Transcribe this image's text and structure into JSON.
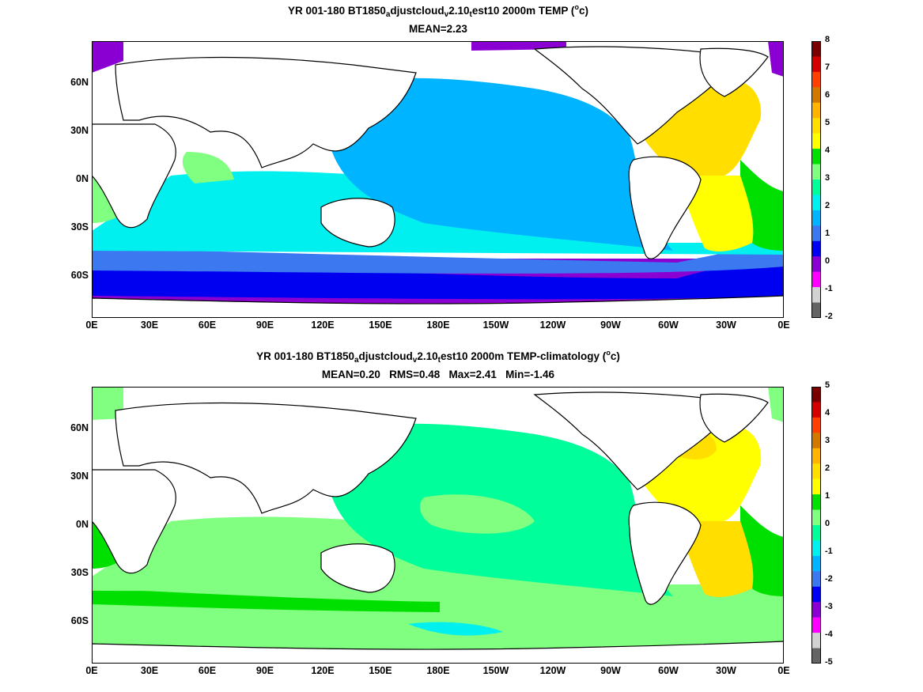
{
  "panels": [
    {
      "id": "top",
      "title": {
        "part1": "YR 001-180 BT1850",
        "sub1": "a",
        "part2": "djustcloud",
        "sub2": "v",
        "part3": "2.10",
        "sub3": "t",
        "part4": "est10 2000m TEMP (",
        "sup": "o",
        "part5": "c)"
      },
      "subtitle": "MEAN=2.23",
      "colorbar": {
        "ticks": [
          "8",
          "7",
          "6",
          "5",
          "4",
          "3",
          "2",
          "1",
          "0",
          "-1",
          "-2"
        ],
        "colors_top_to_bottom": [
          "#7a0000",
          "#d40000",
          "#ff4000",
          "#d27800",
          "#ffb400",
          "#ffde00",
          "#ffff00",
          "#00e000",
          "#80ff80",
          "#00ff9a",
          "#00f0f0",
          "#00b4ff",
          "#3c78f0",
          "#0000f0",
          "#8a00d2",
          "#ff00ff",
          "#d2d2d2",
          "#646464"
        ]
      },
      "regions": [
        {
          "name": "pacific",
          "color": "#00b4ff"
        },
        {
          "name": "atlantic-north",
          "color": "#ffde00"
        },
        {
          "name": "atlantic-south",
          "color": "#ffff00"
        },
        {
          "name": "indian-south",
          "color": "#00f0f0"
        },
        {
          "name": "southern-ocean",
          "color": "#3c78f0"
        },
        {
          "name": "antarctic",
          "color": "#8a00d2"
        }
      ]
    },
    {
      "id": "bottom",
      "title": {
        "part1": "YR 001-180 BT1850",
        "sub1": "a",
        "part2": "djustcloud",
        "sub2": "v",
        "part3": "2.10",
        "sub3": "t",
        "part4": "est10 2000m TEMP-climatology (",
        "sup": "o",
        "part5": "c)"
      },
      "subtitle": "MEAN=0.20   RMS=0.48   Max=2.41   Min=-1.46",
      "colorbar": {
        "ticks": [
          "5",
          "4",
          "3",
          "2",
          "1",
          "0",
          "-1",
          "-2",
          "-3",
          "-4",
          "-5"
        ],
        "colors_top_to_bottom": [
          "#7a0000",
          "#d40000",
          "#ff4000",
          "#d27800",
          "#ffb400",
          "#ffde00",
          "#ffff00",
          "#00e000",
          "#80ff80",
          "#00ff9a",
          "#00f0f0",
          "#00b4ff",
          "#3c78f0",
          "#0000f0",
          "#8a00d2",
          "#ff00ff",
          "#d2d2d2",
          "#646464"
        ]
      },
      "regions": [
        {
          "name": "pacific",
          "color": "#00ff9a"
        },
        {
          "name": "atlantic-north",
          "color": "#ffff00"
        },
        {
          "name": "atlantic-south",
          "color": "#00e000"
        },
        {
          "name": "indian-south",
          "color": "#80ff80"
        },
        {
          "name": "southern-ocean",
          "color": "#80ff80"
        },
        {
          "name": "antarctic",
          "color": "#80ff80"
        }
      ]
    }
  ],
  "axes": {
    "y_ticks": [
      "60N",
      "30N",
      "0N",
      "30S",
      "60S"
    ],
    "x_ticks": [
      "0E",
      "30E",
      "60E",
      "90E",
      "120E",
      "150E",
      "180E",
      "150W",
      "120W",
      "90W",
      "60W",
      "30W",
      "0E"
    ]
  },
  "colors": {
    "land": "#ffffff",
    "coast": "#000000"
  }
}
